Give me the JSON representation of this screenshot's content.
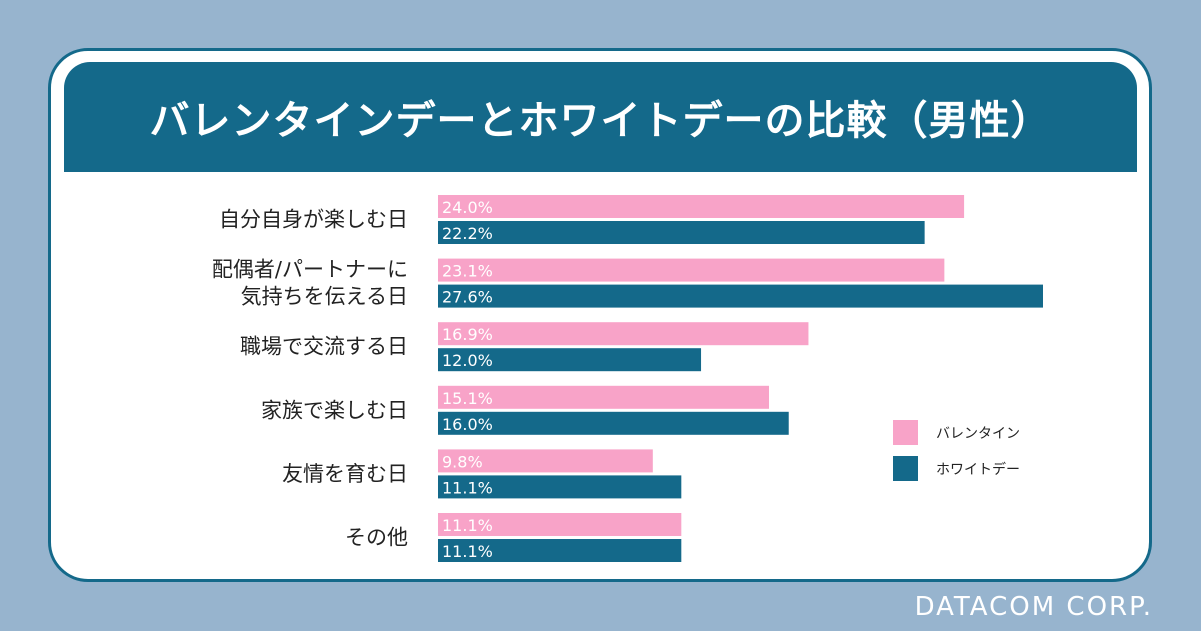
{
  "chart_data": {
    "type": "bar",
    "orientation": "horizontal",
    "title": "バレンタインデーとホワイトデーの比較（男性）",
    "categories": [
      [
        "自分自身が楽しむ日"
      ],
      [
        "配偶者/パートナーに",
        "気持ちを伝える日"
      ],
      [
        "職場で交流する日"
      ],
      [
        "家族で楽しむ日"
      ],
      [
        "友情を育む日"
      ],
      [
        "その他"
      ]
    ],
    "series": [
      {
        "name": "バレンタイン",
        "color": "#f8a3c8",
        "values": [
          24.0,
          23.1,
          16.9,
          15.1,
          9.8,
          11.1
        ],
        "labels": [
          "24.0%",
          "23.1%",
          "16.9%",
          "15.1%",
          "9.8%",
          "11.1%"
        ]
      },
      {
        "name": "ホワイトデー",
        "color": "#14698a",
        "values": [
          22.2,
          27.6,
          12.0,
          16.0,
          11.1,
          11.1
        ],
        "labels": [
          "22.2%",
          "27.6%",
          "12.0%",
          "16.0%",
          "11.1%",
          "11.1%"
        ]
      }
    ],
    "xlim": [
      0,
      27.6
    ],
    "legend_position": "right"
  },
  "brand": "DATACOM CORP."
}
